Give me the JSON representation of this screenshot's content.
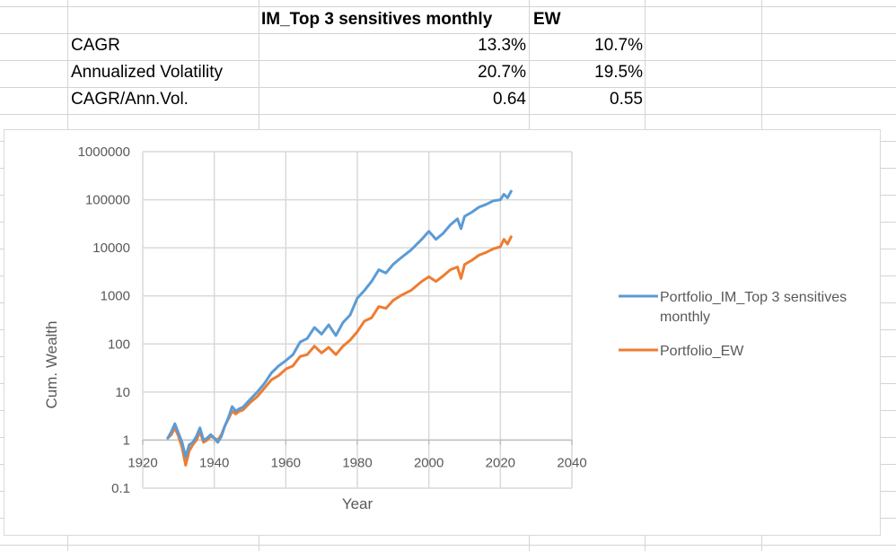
{
  "table": {
    "headers": [
      "IM_Top 3 sensitives monthly",
      "EW"
    ],
    "rows": [
      {
        "label": "CAGR",
        "values": [
          "13.3%",
          "10.7%"
        ]
      },
      {
        "label": "Annualized Volatility",
        "values": [
          "20.7%",
          "19.5%"
        ]
      },
      {
        "label": "CAGR/Ann.Vol.",
        "values": [
          "0.64",
          "0.55"
        ]
      }
    ]
  },
  "colors": {
    "series_im": "#5b9bd5",
    "series_ew": "#ed7d31",
    "gridline": "#d9d9d9",
    "cell_border": "#d4d4d4"
  },
  "chart_data": {
    "type": "line",
    "xlabel": "Year",
    "ylabel": "Cum. Wealth",
    "xlim": [
      1920,
      2040
    ],
    "ylim": [
      0.1,
      1000000
    ],
    "yscale": "log",
    "x_ticks": [
      "1920",
      "1940",
      "1960",
      "1980",
      "2000",
      "2020",
      "2040"
    ],
    "y_ticks": [
      "0.1",
      "1",
      "10",
      "100",
      "1000",
      "10000",
      "100000",
      "1000000"
    ],
    "grid": true,
    "legend": "right",
    "series": [
      {
        "name": "Portfolio_IM_Top 3 sensitives monthly",
        "x": [
          1927,
          1928,
          1929,
          1930,
          1931,
          1932,
          1933,
          1934,
          1935,
          1936,
          1937,
          1938,
          1939,
          1940,
          1941,
          1942,
          1943,
          1944,
          1945,
          1946,
          1947,
          1948,
          1950,
          1952,
          1954,
          1956,
          1958,
          1960,
          1962,
          1964,
          1966,
          1968,
          1970,
          1972,
          1974,
          1976,
          1978,
          1980,
          1982,
          1984,
          1986,
          1988,
          1990,
          1992,
          1995,
          1998,
          2000,
          2002,
          2004,
          2006,
          2008,
          2009,
          2010,
          2012,
          2014,
          2016,
          2018,
          2020,
          2021,
          2022,
          2023
        ],
        "y": [
          1.1,
          1.5,
          2.2,
          1.4,
          0.9,
          0.45,
          0.8,
          0.9,
          1.2,
          1.8,
          1.0,
          1.1,
          1.3,
          1.1,
          0.9,
          1.2,
          2.0,
          3.0,
          5.0,
          4.0,
          4.5,
          4.8,
          7.0,
          10,
          15,
          25,
          35,
          45,
          60,
          110,
          130,
          220,
          160,
          250,
          150,
          280,
          400,
          900,
          1300,
          2000,
          3500,
          3000,
          4500,
          6000,
          9000,
          15000,
          22000,
          15000,
          20000,
          30000,
          40000,
          25000,
          45000,
          55000,
          70000,
          80000,
          95000,
          100000,
          130000,
          110000,
          150000
        ]
      },
      {
        "name": "Portfolio_EW",
        "x": [
          1927,
          1928,
          1929,
          1930,
          1931,
          1932,
          1933,
          1934,
          1935,
          1936,
          1937,
          1938,
          1939,
          1940,
          1941,
          1942,
          1943,
          1944,
          1945,
          1946,
          1947,
          1948,
          1950,
          1952,
          1954,
          1956,
          1958,
          1960,
          1962,
          1964,
          1966,
          1968,
          1970,
          1972,
          1974,
          1976,
          1978,
          1980,
          1982,
          1984,
          1986,
          1988,
          1990,
          1992,
          1995,
          1998,
          2000,
          2002,
          2004,
          2006,
          2008,
          2009,
          2010,
          2012,
          2014,
          2016,
          2018,
          2020,
          2021,
          2022,
          2023
        ],
        "y": [
          1.1,
          1.3,
          1.8,
          1.2,
          0.7,
          0.3,
          0.6,
          0.8,
          1.0,
          1.5,
          0.9,
          1.0,
          1.2,
          1.1,
          1.0,
          1.3,
          2.0,
          2.8,
          4.0,
          3.5,
          4.0,
          4.2,
          6.0,
          8,
          12,
          18,
          22,
          30,
          35,
          55,
          60,
          90,
          65,
          85,
          60,
          90,
          120,
          180,
          300,
          350,
          600,
          550,
          800,
          1000,
          1300,
          2000,
          2500,
          2000,
          2600,
          3500,
          4000,
          2300,
          4500,
          5500,
          7000,
          8000,
          9500,
          10500,
          15000,
          12000,
          17000
        ]
      }
    ]
  }
}
